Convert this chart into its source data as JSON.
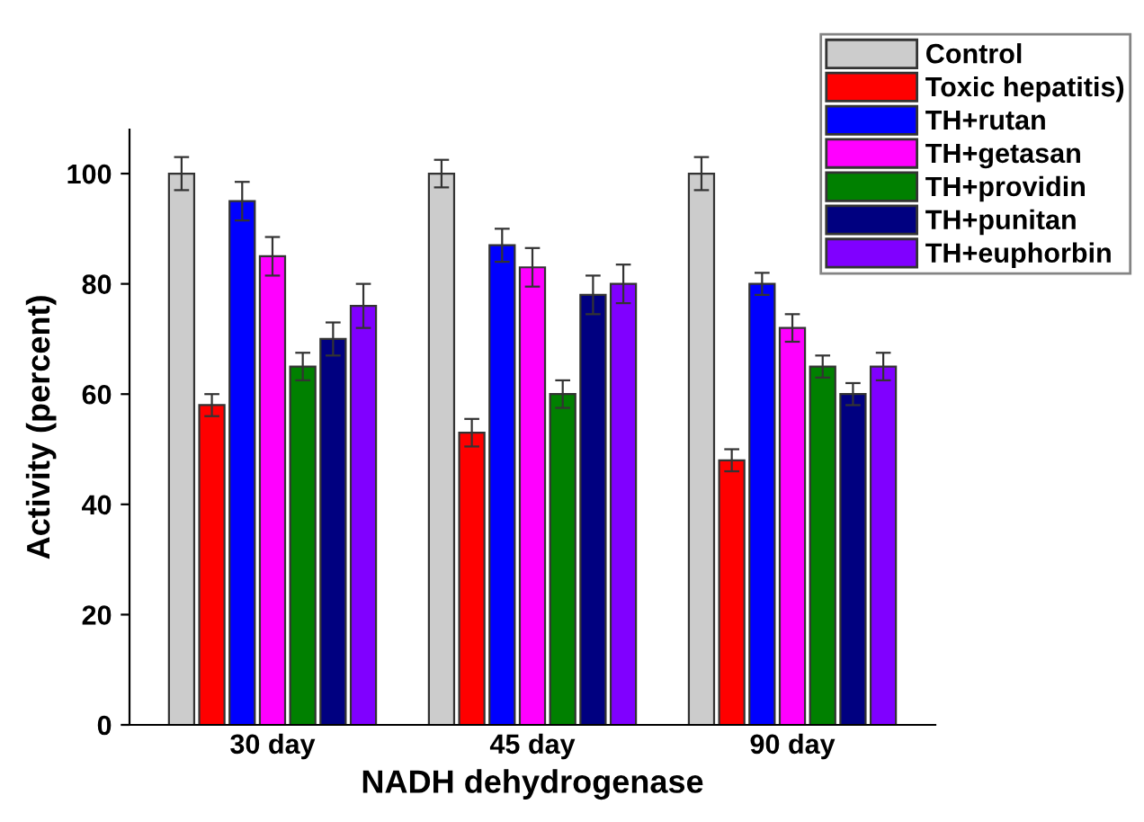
{
  "chart_data": {
    "type": "bar",
    "xlabel": "NADH dehydrogenase",
    "ylabel": "Activity (percent)",
    "categories": [
      "30 day",
      "45 day",
      "90 day"
    ],
    "ylim": [
      0,
      108
    ],
    "yticks": [
      0,
      20,
      40,
      60,
      80,
      100
    ],
    "grid": false,
    "legend": "top right",
    "series": [
      {
        "name": "Control",
        "color": "#cccccc",
        "values": [
          100,
          100,
          100
        ],
        "errors": [
          3,
          2.5,
          3
        ]
      },
      {
        "name": "Toxic hepatitis)",
        "color": "#ff0000",
        "values": [
          58,
          53,
          48
        ],
        "errors": [
          2,
          2.5,
          2
        ]
      },
      {
        "name": "TH+rutan",
        "color": "#0000ff",
        "values": [
          95,
          87,
          80
        ],
        "errors": [
          3.5,
          3,
          2
        ]
      },
      {
        "name": "TH+getasan",
        "color": "#ff00ff",
        "values": [
          85,
          83,
          72
        ],
        "errors": [
          3.5,
          3.5,
          2.5
        ]
      },
      {
        "name": "TH+providin",
        "color": "#008000",
        "values": [
          65,
          60,
          65
        ],
        "errors": [
          2.5,
          2.5,
          2
        ]
      },
      {
        "name": "TH+punitan",
        "color": "#000080",
        "values": [
          70,
          78,
          60
        ],
        "errors": [
          3,
          3.5,
          2
        ]
      },
      {
        "name": "TH+euphorbin",
        "color": "#8000ff",
        "values": [
          76,
          80,
          65
        ],
        "errors": [
          4,
          3.5,
          2.5
        ]
      }
    ]
  }
}
